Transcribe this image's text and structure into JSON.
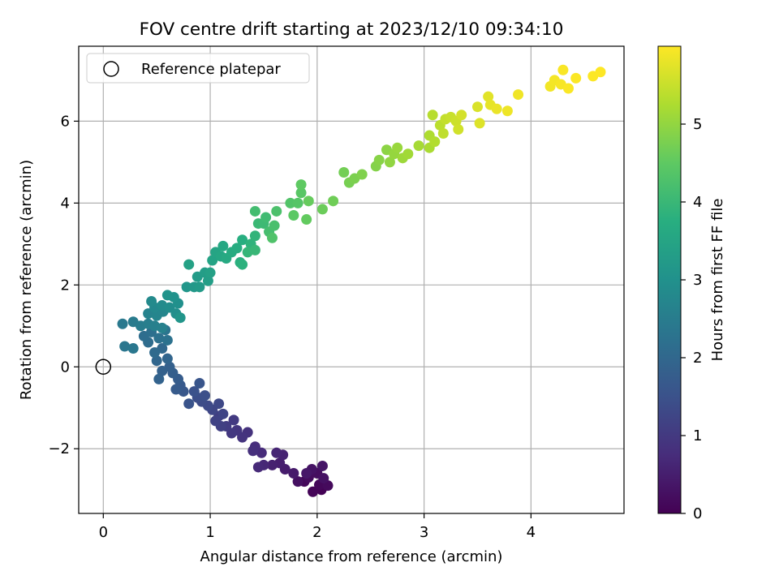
{
  "chart_data": {
    "type": "scatter",
    "title": "FOV centre drift starting at 2023/12/10 09:34:10",
    "xlabel": "Angular distance from reference (arcmin)",
    "ylabel": "Rotation from reference (arcmin)",
    "xlim": [
      -0.23,
      4.87
    ],
    "ylim": [
      -3.58,
      7.83
    ],
    "xticks": [
      0,
      1,
      2,
      3,
      4
    ],
    "yticks": [
      -2,
      0,
      2,
      4,
      6
    ],
    "xtick_labels": [
      "0",
      "1",
      "2",
      "3",
      "4"
    ],
    "ytick_labels": [
      "−2",
      "0",
      "2",
      "4",
      "6"
    ],
    "grid": true,
    "legend": {
      "position": "top-left",
      "entries": [
        "Reference platepar"
      ]
    },
    "reference_point": {
      "x": 0,
      "y": 0
    },
    "colorbar": {
      "label": "Hours from first FF file",
      "colormap": "viridis",
      "range": [
        0,
        6.0
      ],
      "ticks": [
        0,
        1,
        2,
        3,
        4,
        5
      ],
      "tick_labels": [
        "0",
        "1",
        "2",
        "3",
        "4",
        "5"
      ]
    },
    "points": [
      [
        2.04,
        -3.0,
        0.02
      ],
      [
        1.96,
        -3.05,
        0.05
      ],
      [
        2.02,
        -2.88,
        0.1
      ],
      [
        1.88,
        -2.8,
        0.12
      ],
      [
        2.1,
        -2.9,
        0.15
      ],
      [
        1.92,
        -2.7,
        0.2
      ],
      [
        2.0,
        -2.6,
        0.22
      ],
      [
        1.82,
        -2.8,
        0.25
      ],
      [
        2.06,
        -2.72,
        0.28
      ],
      [
        1.95,
        -2.5,
        0.3
      ],
      [
        2.05,
        -2.42,
        0.34
      ],
      [
        1.9,
        -2.6,
        0.38
      ],
      [
        1.78,
        -2.6,
        0.42
      ],
      [
        1.7,
        -2.5,
        0.46
      ],
      [
        1.65,
        -2.35,
        0.5
      ],
      [
        1.58,
        -2.4,
        0.54
      ],
      [
        1.68,
        -2.15,
        0.58
      ],
      [
        1.62,
        -2.1,
        0.62
      ],
      [
        1.5,
        -2.4,
        0.66
      ],
      [
        1.45,
        -2.45,
        0.7
      ],
      [
        1.48,
        -2.1,
        0.74
      ],
      [
        1.42,
        -1.95,
        0.78
      ],
      [
        1.4,
        -2.05,
        0.82
      ],
      [
        1.35,
        -1.6,
        0.86
      ],
      [
        1.3,
        -1.72,
        0.9
      ],
      [
        1.25,
        -1.55,
        0.94
      ],
      [
        1.2,
        -1.62,
        0.98
      ],
      [
        1.22,
        -1.3,
        1.02
      ],
      [
        1.15,
        -1.45,
        1.06
      ],
      [
        1.08,
        -1.2,
        1.1
      ],
      [
        1.1,
        -1.45,
        1.14
      ],
      [
        1.05,
        -1.32,
        1.18
      ],
      [
        1.12,
        -1.15,
        1.22
      ],
      [
        1.02,
        -1.05,
        1.26
      ],
      [
        1.08,
        -0.9,
        1.3
      ],
      [
        0.98,
        -0.95,
        1.34
      ],
      [
        0.92,
        -0.85,
        1.38
      ],
      [
        0.88,
        -0.75,
        1.42
      ],
      [
        0.95,
        -0.7,
        1.46
      ],
      [
        0.85,
        -0.6,
        1.5
      ],
      [
        0.8,
        -0.9,
        1.54
      ],
      [
        0.9,
        -0.4,
        1.58
      ],
      [
        0.75,
        -0.6,
        1.62
      ],
      [
        0.72,
        -0.45,
        1.66
      ],
      [
        0.68,
        -0.55,
        1.7
      ],
      [
        0.7,
        -0.3,
        1.74
      ],
      [
        0.65,
        -0.15,
        1.78
      ],
      [
        0.62,
        0.0,
        1.82
      ],
      [
        0.55,
        -0.1,
        1.86
      ],
      [
        0.52,
        -0.3,
        1.9
      ],
      [
        0.6,
        0.2,
        1.94
      ],
      [
        0.5,
        0.15,
        1.98
      ],
      [
        0.55,
        0.45,
        2.02
      ],
      [
        0.48,
        0.35,
        2.06
      ],
      [
        0.42,
        0.6,
        2.1
      ],
      [
        0.38,
        0.75,
        2.14
      ],
      [
        0.45,
        0.85,
        2.18
      ],
      [
        0.52,
        0.7,
        2.22
      ],
      [
        0.6,
        0.65,
        2.26
      ],
      [
        0.58,
        0.9,
        2.3
      ],
      [
        0.2,
        0.5,
        2.34
      ],
      [
        0.28,
        0.45,
        2.38
      ],
      [
        0.18,
        1.05,
        2.42
      ],
      [
        0.28,
        1.1,
        2.46
      ],
      [
        0.35,
        1.0,
        2.5
      ],
      [
        0.42,
        1.05,
        2.54
      ],
      [
        0.48,
        1.0,
        2.58
      ],
      [
        0.55,
        0.95,
        2.62
      ],
      [
        0.42,
        1.3,
        2.66
      ],
      [
        0.5,
        1.25,
        2.7
      ],
      [
        0.56,
        1.35,
        2.74
      ],
      [
        0.48,
        1.45,
        2.78
      ],
      [
        0.45,
        1.6,
        2.82
      ],
      [
        0.55,
        1.5,
        2.86
      ],
      [
        0.62,
        1.45,
        2.9
      ],
      [
        0.68,
        1.3,
        2.94
      ],
      [
        0.7,
        1.55,
        2.98
      ],
      [
        0.66,
        1.7,
        3.02
      ],
      [
        0.6,
        1.75,
        3.06
      ],
      [
        0.72,
        1.2,
        3.1
      ],
      [
        0.78,
        1.95,
        3.14
      ],
      [
        0.85,
        1.95,
        3.18
      ],
      [
        0.9,
        1.95,
        3.22
      ],
      [
        0.88,
        2.2,
        3.26
      ],
      [
        0.95,
        2.3,
        3.3
      ],
      [
        0.98,
        2.1,
        3.34
      ],
      [
        1.0,
        2.3,
        3.38
      ],
      [
        0.8,
        2.5,
        3.42
      ],
      [
        1.02,
        2.6,
        3.46
      ],
      [
        1.05,
        2.8,
        3.5
      ],
      [
        1.1,
        2.7,
        3.54
      ],
      [
        1.12,
        2.95,
        3.58
      ],
      [
        1.15,
        2.65,
        3.62
      ],
      [
        1.2,
        2.8,
        3.66
      ],
      [
        1.25,
        2.9,
        3.7
      ],
      [
        1.3,
        3.1,
        3.74
      ],
      [
        1.28,
        2.55,
        3.78
      ],
      [
        1.3,
        2.5,
        3.82
      ],
      [
        1.38,
        3.0,
        3.86
      ],
      [
        1.42,
        3.2,
        3.9
      ],
      [
        1.35,
        2.8,
        3.94
      ],
      [
        1.42,
        2.85,
        3.98
      ],
      [
        1.45,
        3.5,
        4.02
      ],
      [
        1.5,
        3.5,
        4.06
      ],
      [
        1.52,
        3.65,
        4.1
      ],
      [
        1.42,
        3.8,
        4.14
      ],
      [
        1.55,
        3.3,
        4.18
      ],
      [
        1.6,
        3.45,
        4.22
      ],
      [
        1.62,
        3.8,
        4.26
      ],
      [
        1.58,
        3.15,
        4.3
      ],
      [
        1.75,
        4.0,
        4.34
      ],
      [
        1.82,
        4.0,
        4.38
      ],
      [
        1.85,
        4.25,
        4.42
      ],
      [
        1.78,
        3.7,
        4.46
      ],
      [
        1.85,
        4.45,
        4.5
      ],
      [
        1.9,
        3.6,
        4.54
      ],
      [
        1.92,
        4.05,
        4.58
      ],
      [
        2.05,
        3.85,
        4.62
      ],
      [
        2.15,
        4.05,
        4.66
      ],
      [
        2.25,
        4.75,
        4.7
      ],
      [
        2.3,
        4.5,
        4.74
      ],
      [
        2.35,
        4.6,
        4.78
      ],
      [
        2.42,
        4.7,
        4.82
      ],
      [
        2.55,
        4.9,
        4.86
      ],
      [
        2.58,
        5.05,
        4.9
      ],
      [
        2.65,
        5.3,
        4.94
      ],
      [
        2.68,
        5.0,
        4.98
      ],
      [
        2.72,
        5.2,
        5.02
      ],
      [
        2.75,
        5.35,
        5.06
      ],
      [
        2.8,
        5.1,
        5.1
      ],
      [
        2.85,
        5.2,
        5.14
      ],
      [
        2.95,
        5.4,
        5.18
      ],
      [
        3.05,
        5.35,
        5.22
      ],
      [
        3.05,
        5.65,
        5.26
      ],
      [
        3.1,
        5.5,
        5.3
      ],
      [
        3.08,
        6.15,
        5.34
      ],
      [
        3.15,
        5.9,
        5.38
      ],
      [
        3.18,
        5.7,
        5.42
      ],
      [
        3.2,
        6.05,
        5.46
      ],
      [
        3.25,
        6.1,
        5.5
      ],
      [
        3.3,
        6.0,
        5.54
      ],
      [
        3.32,
        5.8,
        5.58
      ],
      [
        3.35,
        6.15,
        5.62
      ],
      [
        3.5,
        6.35,
        5.66
      ],
      [
        3.52,
        5.95,
        5.7
      ],
      [
        3.6,
        6.6,
        5.74
      ],
      [
        3.62,
        6.4,
        5.78
      ],
      [
        3.68,
        6.3,
        5.82
      ],
      [
        3.78,
        6.25,
        5.86
      ],
      [
        3.88,
        6.65,
        5.88
      ],
      [
        4.18,
        6.85,
        5.9
      ],
      [
        4.22,
        7.0,
        5.92
      ],
      [
        4.28,
        6.9,
        5.94
      ],
      [
        4.3,
        7.25,
        5.96
      ],
      [
        4.35,
        6.8,
        5.97
      ],
      [
        4.42,
        7.05,
        5.98
      ],
      [
        4.58,
        7.1,
        5.99
      ],
      [
        4.65,
        7.2,
        6.0
      ]
    ]
  }
}
